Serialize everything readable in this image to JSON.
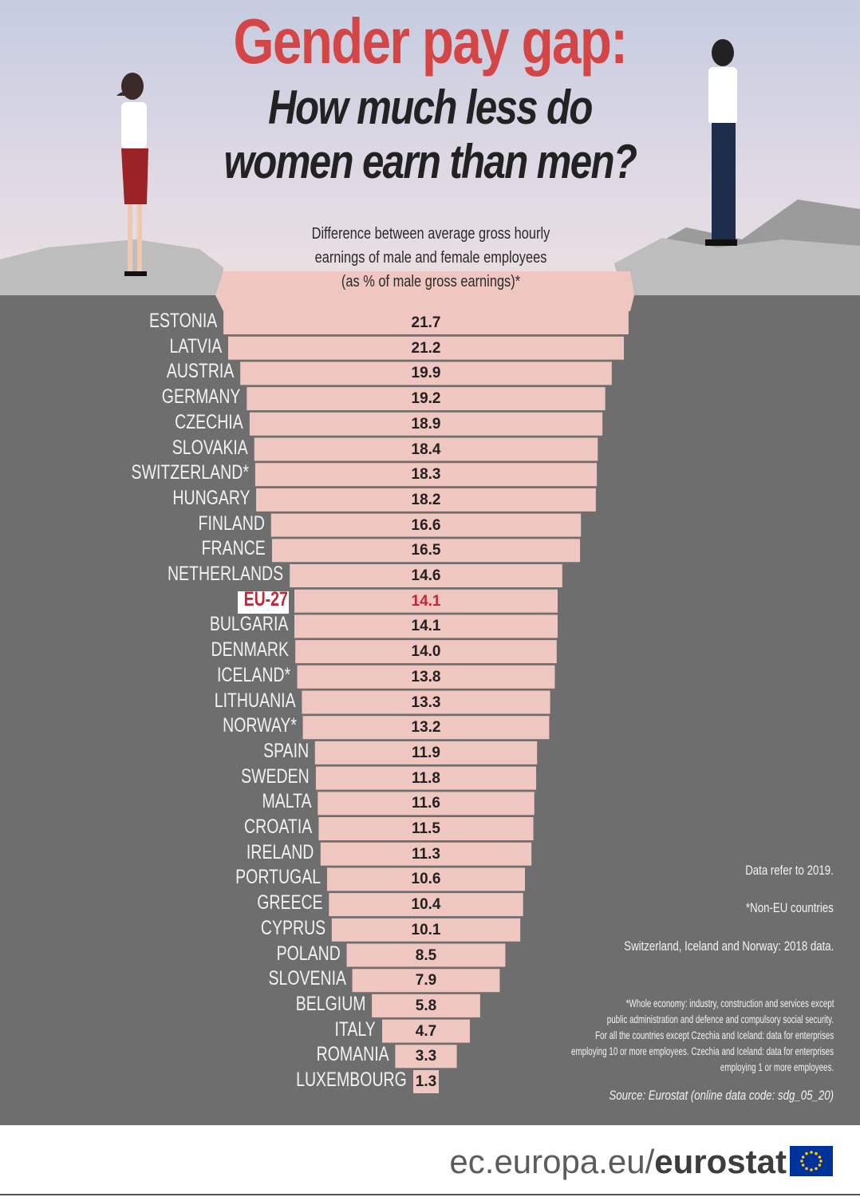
{
  "title": "Gender pay gap:",
  "subtitle_line1": "How much less do",
  "subtitle_line2": "women earn than men?",
  "chart_caption": [
    "Difference between average gross hourly",
    "earnings of male and female employees",
    "(as % of male gross earnings)*"
  ],
  "chart_data": {
    "type": "bar",
    "orientation": "horizontal",
    "categories": [
      "ESTONIA",
      "LATVIA",
      "AUSTRIA",
      "GERMANY",
      "CZECHIA",
      "SLOVAKIA",
      "SWITZERLAND*",
      "HUNGARY",
      "FINLAND",
      "FRANCE",
      "NETHERLANDS",
      "EU-27",
      "BULGARIA",
      "DENMARK",
      "ICELAND*",
      "LITHUANIA",
      "NORWAY*",
      "SPAIN",
      "SWEDEN",
      "MALTA",
      "CROATIA",
      "IRELAND",
      "PORTUGAL",
      "GREECE",
      "CYPRUS",
      "POLAND",
      "SLOVENIA",
      "BELGIUM",
      "ITALY",
      "ROMANIA",
      "LUXEMBOURG"
    ],
    "values": [
      21.7,
      21.2,
      19.9,
      19.2,
      18.9,
      18.4,
      18.3,
      18.2,
      16.6,
      16.5,
      14.6,
      14.1,
      14.1,
      14.0,
      13.8,
      13.3,
      13.2,
      11.9,
      11.8,
      11.6,
      11.5,
      11.3,
      10.6,
      10.4,
      10.1,
      8.5,
      7.9,
      5.8,
      4.7,
      3.3,
      1.3
    ],
    "value_labels": [
      "21.7",
      "21.2",
      "19.9",
      "19.2",
      "18.9",
      "18.4",
      "18.3",
      "18.2",
      "16.6",
      "16.5",
      "14.6",
      "14.1",
      "14.1",
      "14.0",
      "13.8",
      "13.3",
      "13.2",
      "11.9",
      "11.8",
      "11.6",
      "11.5",
      "11.3",
      "10.6",
      "10.4",
      "10.1",
      "8.5",
      "7.9",
      "5.8",
      "4.7",
      "3.3",
      "1.3"
    ],
    "highlight": "EU-27",
    "colors": {
      "bar": "#efc6c0",
      "highlight_text": "#c0283a",
      "background": "#6e6e6e"
    }
  },
  "notes": {
    "data_year": "Data refer to 2019.",
    "non_eu": "*Non-EU countries",
    "countries_2018": "Switzerland, Iceland and Norway: 2018 data.",
    "footnote": [
      "*Whole economy: industry, construction and services except",
      "public administration and defence and compulsory social security.",
      "For all the countries except Czechia and Iceland: data for enterprises",
      "employing 10 or more employees. Czechia and Iceland: data for enterprises",
      "employing 1 or more employees."
    ],
    "source": "Source: Eurostat (online data code: sdg_05_20)"
  },
  "footer": {
    "domain": "ec.europa.eu/",
    "brand": "eurostat"
  }
}
